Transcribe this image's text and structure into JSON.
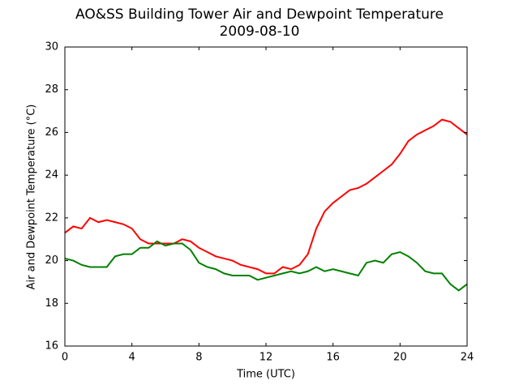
{
  "chart_data": {
    "type": "line",
    "title": "AO&SS Building Tower Air and Dewpoint Temperature",
    "subtitle": "2009-08-10",
    "x_label": "Time (UTC)",
    "y_label": "Air and Dewpoint Temperature (°C)",
    "x": [
      0,
      0.5,
      1,
      1.5,
      2,
      2.5,
      3,
      3.5,
      4,
      4.5,
      5,
      5.5,
      6,
      6.5,
      7,
      7.5,
      8,
      8.5,
      9,
      9.5,
      10,
      10.5,
      11,
      11.5,
      12,
      12.5,
      13,
      13.5,
      14,
      14.5,
      15,
      15.5,
      16,
      16.5,
      17,
      17.5,
      18,
      18.5,
      19,
      19.5,
      20,
      20.5,
      21,
      21.5,
      22,
      22.5,
      23,
      23.5,
      24
    ],
    "series": [
      {
        "color": "#ff0000",
        "values": [
          21.3,
          21.6,
          21.5,
          22.0,
          21.8,
          21.9,
          21.8,
          21.7,
          21.5,
          21.0,
          20.8,
          20.8,
          20.8,
          20.8,
          21.0,
          20.9,
          20.6,
          20.4,
          20.2,
          20.1,
          20.0,
          19.8,
          19.7,
          19.6,
          19.4,
          19.4,
          19.7,
          19.6,
          19.8,
          20.3,
          21.5,
          22.3,
          22.7,
          23.0,
          23.3,
          23.4,
          23.6,
          23.9,
          24.2,
          24.5,
          25.0,
          25.6,
          25.9,
          26.1,
          26.3,
          26.6,
          26.5,
          26.2,
          25.9
        ]
      },
      {
        "color": "#008000",
        "values": [
          20.1,
          20.0,
          19.8,
          19.7,
          19.7,
          19.7,
          20.2,
          20.3,
          20.3,
          20.6,
          20.6,
          20.9,
          20.7,
          20.8,
          20.8,
          20.5,
          19.9,
          19.7,
          19.6,
          19.4,
          19.3,
          19.3,
          19.3,
          19.1,
          19.2,
          19.3,
          19.4,
          19.5,
          19.4,
          19.5,
          19.7,
          19.5,
          19.6,
          19.5,
          19.4,
          19.3,
          19.9,
          20.0,
          19.9,
          20.3,
          20.4,
          20.2,
          19.9,
          19.5,
          19.4,
          19.4,
          18.9,
          18.6,
          18.9
        ]
      }
    ],
    "xlim": [
      0,
      24
    ],
    "xticks": [
      0,
      4,
      8,
      12,
      16,
      20,
      24
    ],
    "ylim": [
      16,
      30
    ],
    "yticks": [
      16,
      18,
      20,
      22,
      24,
      26,
      28,
      30
    ]
  }
}
